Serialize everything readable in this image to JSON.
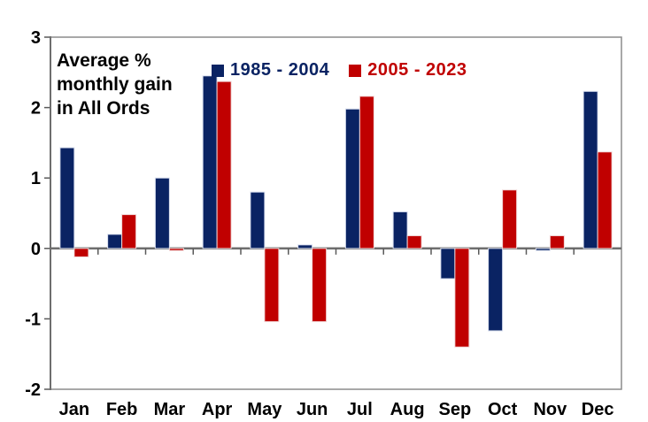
{
  "chart": {
    "title_lines": [
      "Average %",
      "monthly gain",
      "in All Ords"
    ],
    "colors": {
      "navy": "#0A2363",
      "red": "#C00000",
      "navy_outline": "#D9DFEF",
      "red_outline": "#F0D6D6",
      "border": "#8C8C8C",
      "axis": "#6E6E6E",
      "tick": "#595959",
      "label": "#000000",
      "background": "#FFFFFF"
    }
  },
  "chart_data": {
    "type": "bar",
    "title": "Average % monthly gain in All Ords",
    "xlabel": "",
    "ylabel": "",
    "categories": [
      "Jan",
      "Feb",
      "Mar",
      "Apr",
      "May",
      "Jun",
      "Jul",
      "Aug",
      "Sep",
      "Oct",
      "Nov",
      "Dec"
    ],
    "series": [
      {
        "name": "1985 - 2004",
        "color": "#0A2363",
        "outline": "#D9DFEF",
        "values": [
          1.43,
          0.2,
          1.0,
          2.45,
          0.8,
          0.05,
          1.98,
          0.52,
          -0.43,
          -1.17,
          -0.03,
          2.23
        ]
      },
      {
        "name": "2005 - 2023",
        "color": "#C00000",
        "outline": "#F0D6D6",
        "values": [
          -0.12,
          0.48,
          -0.03,
          2.37,
          -1.04,
          -1.04,
          2.16,
          0.18,
          -1.4,
          0.83,
          0.18,
          1.37
        ]
      }
    ],
    "ylim": [
      -2,
      3
    ],
    "yticks": [
      3,
      2,
      1,
      0,
      -1,
      -2
    ],
    "grid": false,
    "legend_position": "top-center"
  }
}
